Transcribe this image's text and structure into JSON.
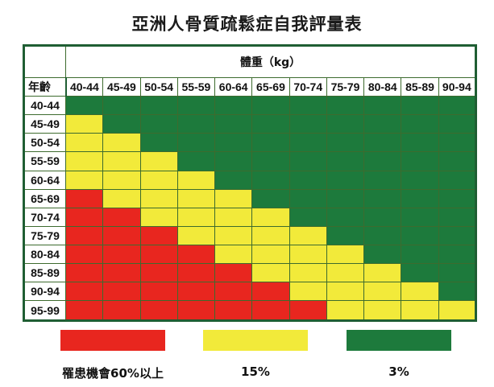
{
  "title": "亞洲人骨質疏鬆症自我評量表",
  "chart_data": {
    "type": "heatmap",
    "title": "亞洲人骨質疏鬆症自我評量表",
    "xlabel": "體重（kg）",
    "ylabel": "年齡",
    "x": [
      "40-44",
      "45-49",
      "50-54",
      "55-59",
      "60-64",
      "65-69",
      "70-74",
      "75-79",
      "80-84",
      "85-89",
      "90-94"
    ],
    "y": [
      "40-44",
      "45-49",
      "50-54",
      "55-59",
      "60-64",
      "65-69",
      "70-74",
      "75-79",
      "80-84",
      "85-89",
      "90-94",
      "95-99"
    ],
    "values": [
      [
        "G",
        "G",
        "G",
        "G",
        "G",
        "G",
        "G",
        "G",
        "G",
        "G",
        "G"
      ],
      [
        "Y",
        "G",
        "G",
        "G",
        "G",
        "G",
        "G",
        "G",
        "G",
        "G",
        "G"
      ],
      [
        "Y",
        "Y",
        "G",
        "G",
        "G",
        "G",
        "G",
        "G",
        "G",
        "G",
        "G"
      ],
      [
        "Y",
        "Y",
        "Y",
        "G",
        "G",
        "G",
        "G",
        "G",
        "G",
        "G",
        "G"
      ],
      [
        "Y",
        "Y",
        "Y",
        "Y",
        "G",
        "G",
        "G",
        "G",
        "G",
        "G",
        "G"
      ],
      [
        "R",
        "Y",
        "Y",
        "Y",
        "Y",
        "G",
        "G",
        "G",
        "G",
        "G",
        "G"
      ],
      [
        "R",
        "R",
        "Y",
        "Y",
        "Y",
        "Y",
        "G",
        "G",
        "G",
        "G",
        "G"
      ],
      [
        "R",
        "R",
        "R",
        "Y",
        "Y",
        "Y",
        "Y",
        "G",
        "G",
        "G",
        "G"
      ],
      [
        "R",
        "R",
        "R",
        "R",
        "Y",
        "Y",
        "Y",
        "Y",
        "G",
        "G",
        "G"
      ],
      [
        "R",
        "R",
        "R",
        "R",
        "R",
        "Y",
        "Y",
        "Y",
        "Y",
        "G",
        "G"
      ],
      [
        "R",
        "R",
        "R",
        "R",
        "R",
        "R",
        "Y",
        "Y",
        "Y",
        "Y",
        "G"
      ],
      [
        "R",
        "R",
        "R",
        "R",
        "R",
        "R",
        "R",
        "Y",
        "Y",
        "Y",
        "Y"
      ]
    ],
    "legend": [
      {
        "key": "R",
        "label": "罹患機會60%以上",
        "color": "#e8261f"
      },
      {
        "key": "Y",
        "label": "15%",
        "color": "#f2ea3a"
      },
      {
        "key": "G",
        "label": "3%",
        "color": "#1d7a3c"
      }
    ]
  },
  "header": {
    "weight_label": "體重（kg）",
    "age_label": "年齡"
  },
  "legend": [
    {
      "label": "罹患機會60%以上",
      "color": "#e8261f"
    },
    {
      "label": "15%",
      "color": "#f2ea3a"
    },
    {
      "label": "3%",
      "color": "#1d7a3c"
    }
  ]
}
